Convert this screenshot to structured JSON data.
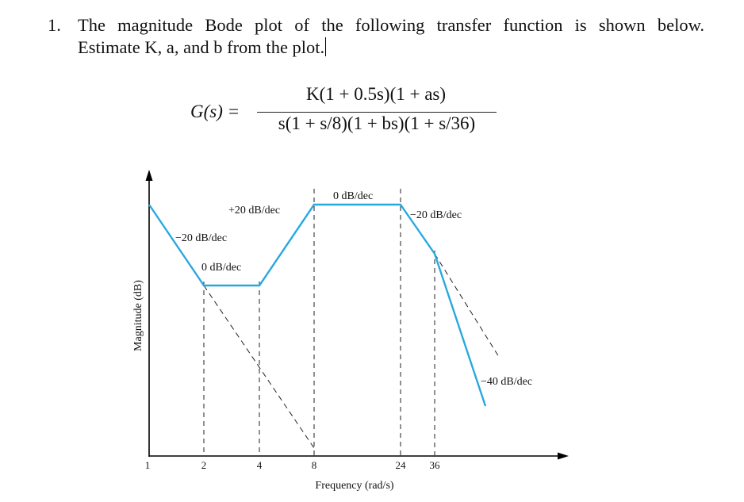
{
  "question": {
    "number": "1.",
    "line1": "The magnitude Bode plot of the following transfer function is shown below.",
    "line2": "Estimate K, a, and b from the plot."
  },
  "equation": {
    "lhs": "G(s) =",
    "numerator": "K(1 + 0.5s)(1 + as)",
    "denominator": "s(1 + s/8)(1 + bs)(1 + s/36)"
  },
  "plot": {
    "ylabel": "Magnitude (dB)",
    "xlabel": "Frequency (rad/s)",
    "x_ticks": [
      "1",
      "2",
      "4",
      "8",
      "24",
      "36"
    ],
    "colors": {
      "asymptote": "#29a8e0",
      "axis": "#000000",
      "guide": "#222222"
    },
    "segment_labels": [
      "−20 dB/dec",
      "0 dB/dec",
      "+20 dB/dec",
      "0 dB/dec",
      "−20 dB/dec",
      "−40 dB/dec"
    ],
    "breakpoints_rad_s": [
      2,
      4,
      8,
      24,
      36
    ]
  }
}
